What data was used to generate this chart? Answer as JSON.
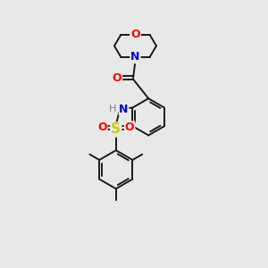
{
  "background_color": "#e8e8e8",
  "bond_color": "#1a1a1a",
  "atom_colors": {
    "O": "#ff0000",
    "N": "#0000cc",
    "S": "#cccc00",
    "H": "#708090",
    "C": "#1a1a1a"
  },
  "figsize": [
    3.0,
    3.0
  ],
  "dpi": 100
}
